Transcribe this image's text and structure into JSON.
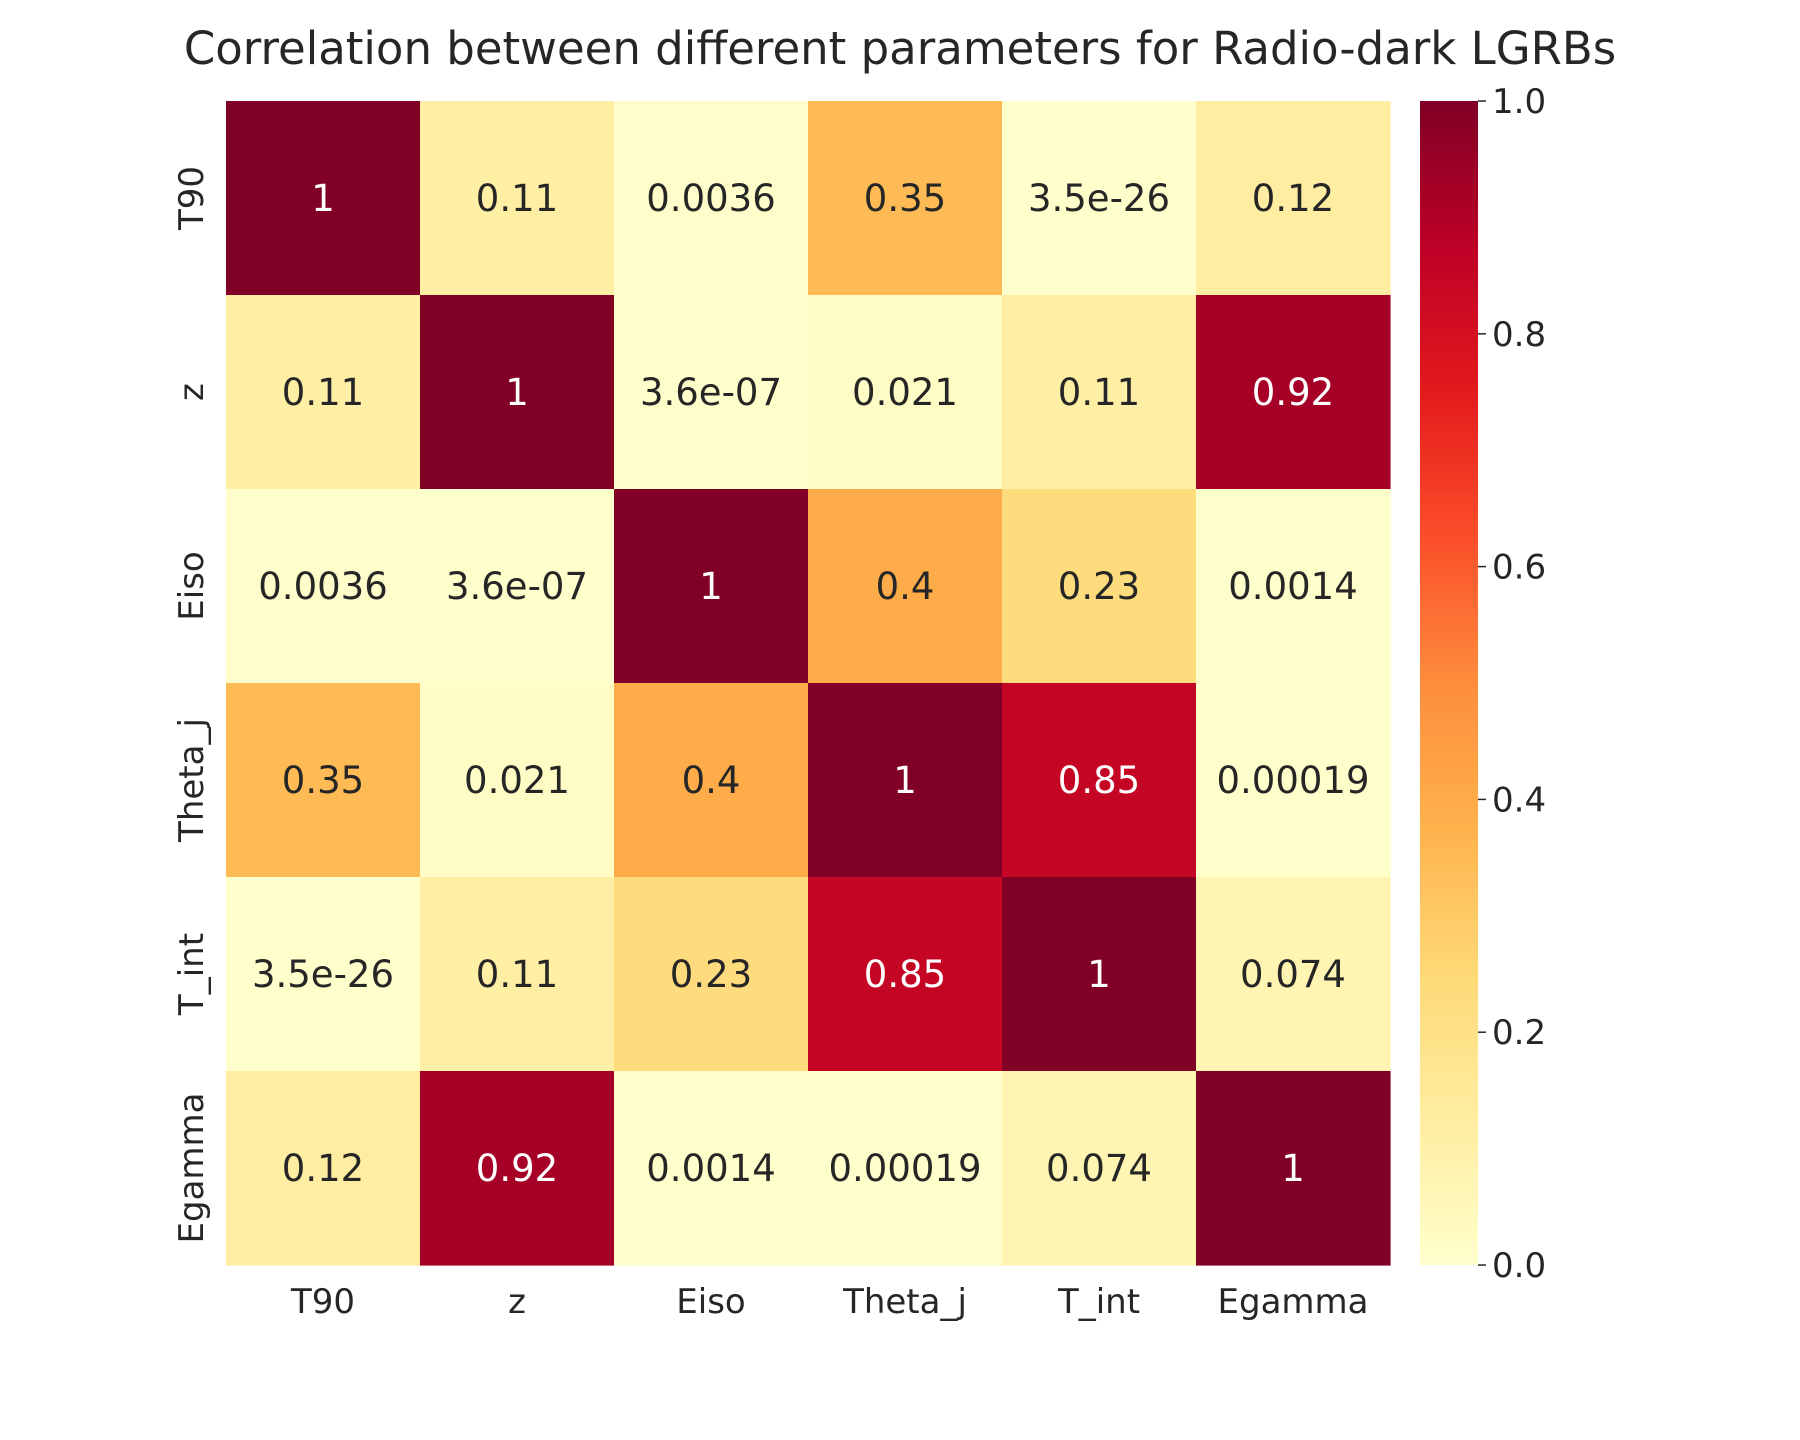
{
  "chart_data": {
    "type": "heatmap",
    "title": "Correlation between different parameters for Radio-dark LGRBs",
    "x_categories": [
      "T90",
      "z",
      "Eiso",
      "Theta_j",
      "T_int",
      "Egamma"
    ],
    "y_categories": [
      "T90",
      "z",
      "Eiso",
      "Theta_j",
      "T_int",
      "Egamma"
    ],
    "values": [
      [
        1,
        0.11,
        0.0036,
        0.35,
        3.5e-26,
        0.12
      ],
      [
        0.11,
        1,
        3.6e-07,
        0.021,
        0.11,
        0.92
      ],
      [
        0.0036,
        3.6e-07,
        1,
        0.4,
        0.23,
        0.0014
      ],
      [
        0.35,
        0.021,
        0.4,
        1,
        0.85,
        0.00019
      ],
      [
        3.5e-26,
        0.11,
        0.23,
        0.85,
        1,
        0.074
      ],
      [
        0.12,
        0.92,
        0.0014,
        0.00019,
        0.074,
        1
      ]
    ],
    "annotations": [
      [
        "1",
        "0.11",
        "0.0036",
        "0.35",
        "3.5e-26",
        "0.12"
      ],
      [
        "0.11",
        "1",
        "3.6e-07",
        "0.021",
        "0.11",
        "0.92"
      ],
      [
        "0.0036",
        "3.6e-07",
        "1",
        "0.4",
        "0.23",
        "0.0014"
      ],
      [
        "0.35",
        "0.021",
        "0.4",
        "1",
        "0.85",
        "0.00019"
      ],
      [
        "3.5e-26",
        "0.11",
        "0.23",
        "0.85",
        "1",
        "0.074"
      ],
      [
        "0.12",
        "0.92",
        "0.0014",
        "0.00019",
        "0.074",
        "1"
      ]
    ],
    "colormap": "YlOrRd",
    "colorbar": {
      "range": [
        0.0,
        1.0
      ],
      "ticks": [
        0.0,
        0.2,
        0.4,
        0.6,
        0.8,
        1.0
      ],
      "tick_labels": [
        "0.0",
        "0.2",
        "0.4",
        "0.6",
        "0.8",
        "1.0"
      ]
    }
  }
}
